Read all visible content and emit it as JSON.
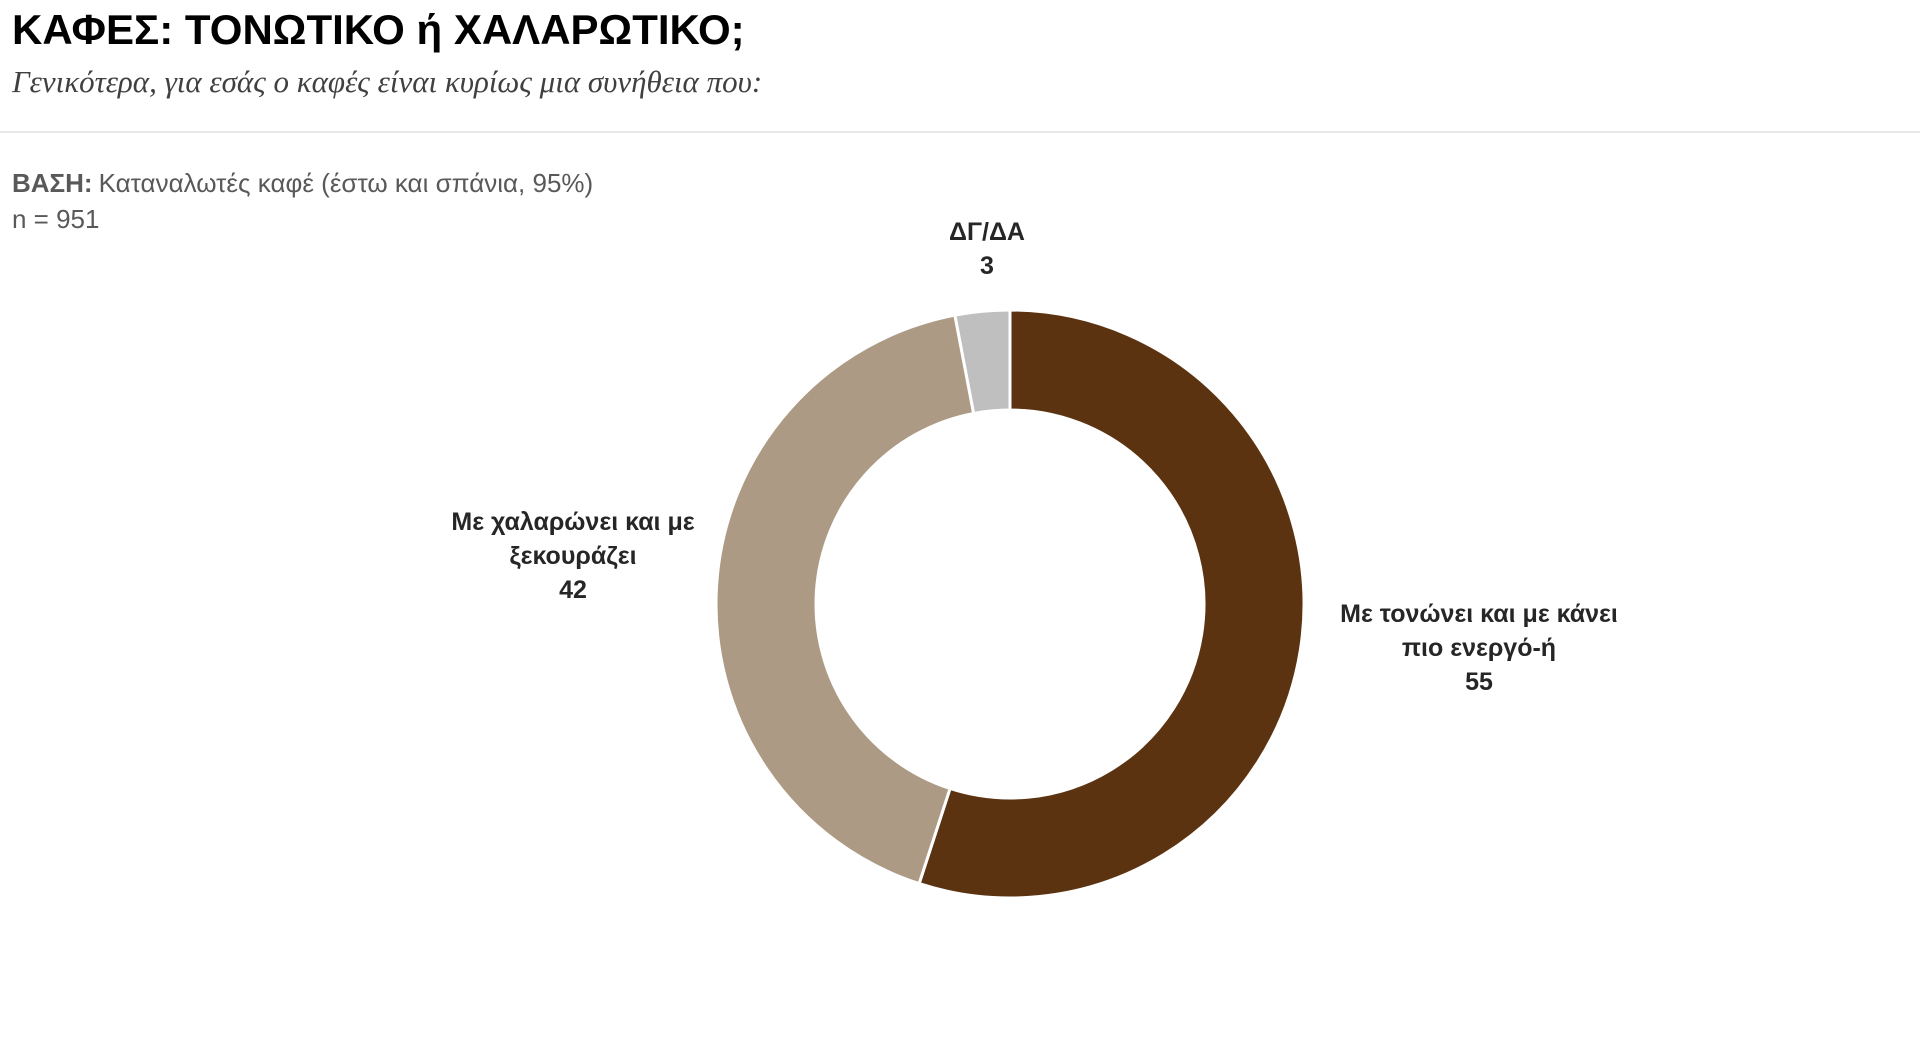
{
  "chart_data": {
    "type": "donut",
    "title": "ΚΑΦΕΣ: ΤΟΝΩΤΙΚΟ ή ΧΑΛΑΡΩΤΙΚΟ;",
    "subtitle": "Γενικότερα, για εσάς ο καφές είναι κυρίως μια συνήθεια που:",
    "base_label": "ΒΑΣΗ:",
    "base_text": "Καταναλωτές καφέ (έστω και σπάνια, 95%)",
    "sample": "n = 951",
    "categories": [
      "Με τονώνει και με κάνει\nπιο ενεργό-ή",
      "Με χαλαρώνει και με\nξεκουράζει",
      "ΔΓ/ΔΑ"
    ],
    "values": [
      55,
      42,
      3
    ],
    "colors": [
      "#5c3310",
      "#ad9a84",
      "#bfbfbf"
    ]
  }
}
